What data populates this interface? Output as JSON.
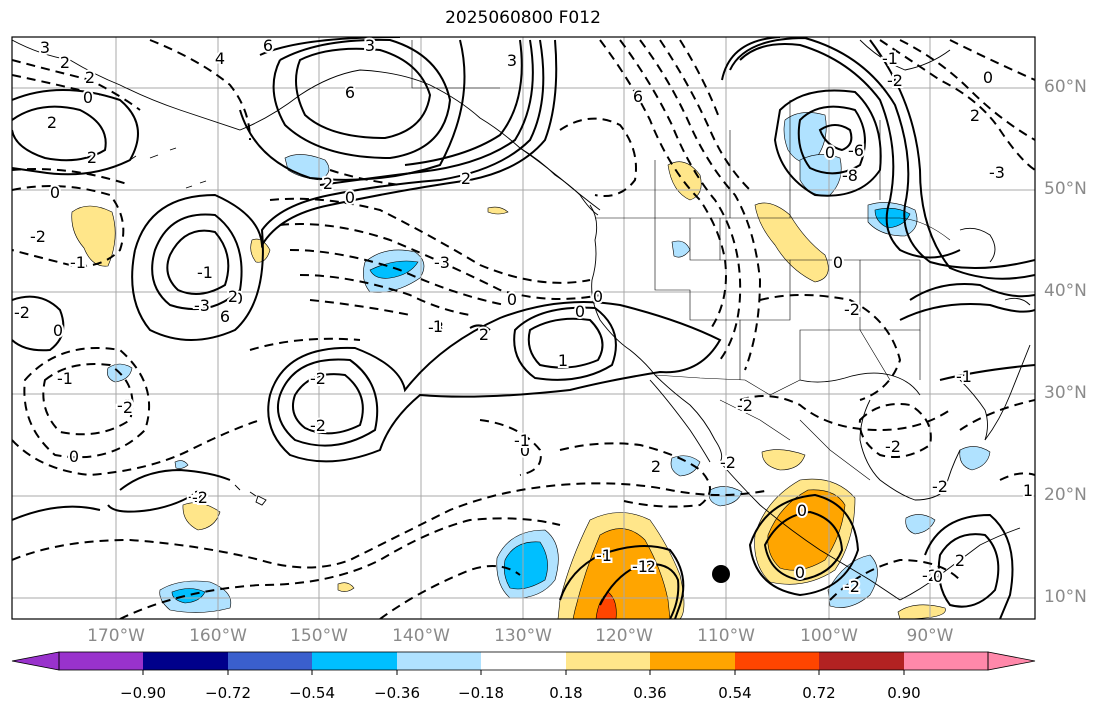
{
  "title": "2025060800 F012",
  "lat_labels": [
    "60°N",
    "50°N",
    "40°N",
    "30°N",
    "20°N",
    "10°N"
  ],
  "lon_labels": [
    "170°W",
    "160°W",
    "150°W",
    "140°W",
    "130°W",
    "120°W",
    "110°W",
    "100°W",
    "90°W"
  ],
  "colorbar": {
    "tick_labels": [
      "−0.90",
      "−0.72",
      "−0.54",
      "−0.36",
      "−0.18",
      "0.18",
      "0.36",
      "0.54",
      "0.72",
      "0.90"
    ],
    "colors": [
      "#9932cc",
      "#00008b",
      "#3a5fcd",
      "#00bfff",
      "#b0e2ff",
      "#ffffff",
      "#ffe68a",
      "#ffa500",
      "#ff4500",
      "#b22222",
      "#ff88aa"
    ]
  },
  "colors": {
    "contour": "#000000",
    "coastline": "#000000",
    "grid": "#a8a8a8",
    "axis_label": "#8a8a8a"
  },
  "contour_labels": [
    "3",
    "2",
    "2",
    "0",
    "2",
    "6",
    "3",
    "3",
    "4",
    "6",
    "6",
    "2",
    "0",
    "2",
    "0",
    "2",
    "0",
    "-2",
    "-1",
    "-3",
    "-2",
    "-1",
    "-2",
    "-3",
    "0",
    "2",
    "-3",
    "0",
    "0",
    "-1",
    "6",
    "2",
    "1",
    "-2",
    "-2",
    "2",
    "0",
    "0",
    "2",
    "-2",
    "-1",
    "-2",
    "-2",
    "-2",
    "-1",
    "-1",
    "0",
    "0",
    "-2",
    "-2",
    "-2",
    "2",
    "0",
    "1",
    "-6",
    "-8",
    "0",
    "-2",
    "-2",
    "-3",
    "0",
    "-2",
    "2",
    "0",
    "-1",
    "-1",
    "-2",
    "0",
    "1"
  ]
}
